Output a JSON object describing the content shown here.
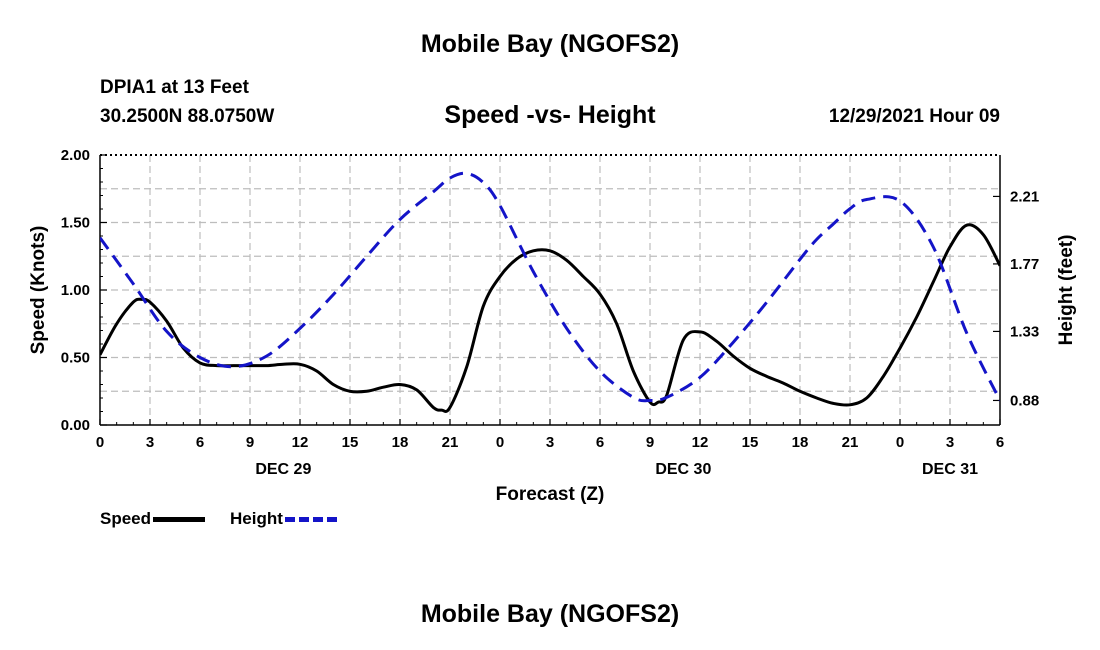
{
  "header": {
    "title": "Mobile Bay (NGOFS2)",
    "station": "DPIA1 at 13 Feet",
    "coords": "30.2500N  88.0750W",
    "subtitle": "Speed -vs- Height",
    "datetime": "12/29/2021 Hour 09"
  },
  "footer": {
    "title": "Mobile Bay (NGOFS2)"
  },
  "colors": {
    "speed": "#000000",
    "height": "#1414c8",
    "grid": "#bdbdbd"
  },
  "chart_data": {
    "type": "line",
    "title": "Speed -vs- Height",
    "xlabel": "Forecast (Z)",
    "ylabel": "Speed (Knots)",
    "y2label": "Height (feet)",
    "x_hours": [
      0,
      3,
      6,
      9,
      12,
      15,
      18,
      21,
      24,
      27,
      30,
      33,
      36,
      39,
      42,
      45,
      48,
      51,
      54
    ],
    "x_tick_labels": [
      "0",
      "3",
      "6",
      "9",
      "12",
      "15",
      "18",
      "21",
      "0",
      "3",
      "6",
      "9",
      "12",
      "15",
      "18",
      "21",
      "0",
      "3",
      "6"
    ],
    "day_labels": [
      {
        "hour": 11,
        "label": "DEC 29"
      },
      {
        "hour": 35,
        "label": "DEC 30"
      },
      {
        "hour": 51,
        "label": "DEC 31"
      }
    ],
    "ylim": [
      0,
      2
    ],
    "y_ticks": [
      "0.00",
      "0.50",
      "1.00",
      "1.50",
      "2.00"
    ],
    "y2lim": [
      0.72,
      2.48
    ],
    "y2_ticks": [
      0.88,
      1.33,
      1.77,
      2.21
    ],
    "y2_tick_labels": [
      "0.88",
      "1.33",
      "1.77",
      "2.21"
    ],
    "grid": true,
    "legend_position": "bottom-left",
    "series": [
      {
        "name": "Speed",
        "axis": "left",
        "style": "solid",
        "x": [
          0,
          1,
          2,
          2.5,
          3,
          4,
          5,
          6,
          7,
          8,
          9,
          10,
          11,
          12,
          13,
          14,
          15,
          16,
          17,
          18,
          19,
          20,
          20.5,
          21,
          22,
          23,
          24,
          25,
          26,
          27,
          28,
          29,
          30,
          31,
          32,
          33,
          33.5,
          34,
          35,
          36,
          37,
          38,
          39,
          40,
          41,
          42,
          43,
          44,
          45,
          46,
          47,
          48,
          49,
          50,
          51,
          52,
          53,
          54
        ],
        "values": [
          0.52,
          0.75,
          0.91,
          0.93,
          0.91,
          0.77,
          0.57,
          0.46,
          0.44,
          0.44,
          0.44,
          0.44,
          0.45,
          0.45,
          0.4,
          0.3,
          0.25,
          0.25,
          0.28,
          0.3,
          0.26,
          0.13,
          0.11,
          0.13,
          0.43,
          0.88,
          1.1,
          1.23,
          1.29,
          1.29,
          1.22,
          1.1,
          0.97,
          0.75,
          0.4,
          0.17,
          0.17,
          0.22,
          0.63,
          0.69,
          0.62,
          0.51,
          0.42,
          0.36,
          0.31,
          0.25,
          0.2,
          0.16,
          0.15,
          0.2,
          0.36,
          0.57,
          0.8,
          1.06,
          1.32,
          1.48,
          1.41,
          1.18
        ]
      },
      {
        "name": "Height",
        "axis": "right",
        "style": "dashed",
        "x": [
          0,
          2,
          4,
          6,
          8,
          10,
          12,
          14,
          16,
          18,
          20,
          21,
          22,
          23,
          24,
          26,
          28,
          30,
          32,
          33,
          34,
          36,
          38,
          40,
          42,
          43,
          44,
          45,
          46,
          48,
          50,
          52,
          54
        ],
        "values": [
          1.94,
          1.64,
          1.33,
          1.16,
          1.1,
          1.17,
          1.35,
          1.57,
          1.82,
          2.06,
          2.24,
          2.33,
          2.36,
          2.3,
          2.15,
          1.72,
          1.35,
          1.07,
          0.9,
          0.88,
          0.9,
          1.03,
          1.26,
          1.52,
          1.8,
          1.93,
          2.03,
          2.13,
          2.19,
          2.18,
          1.88,
          1.32,
          0.88
        ]
      }
    ]
  },
  "legend": {
    "speed_label": "Speed",
    "height_label": "Height"
  }
}
